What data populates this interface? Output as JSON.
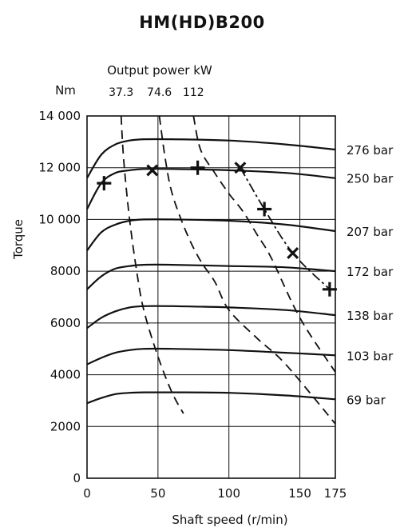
{
  "chart_data": {
    "type": "line",
    "title": "HM(HD)B200",
    "xlabel": "Shaft speed (r/min)",
    "ylabel": "Torque",
    "y_unit_label": "Nm",
    "top_axis_label": "Output power kW",
    "xlim": [
      0,
      175
    ],
    "ylim": [
      0,
      14000
    ],
    "grid": true,
    "x_ticks": [
      0,
      50,
      100,
      150,
      175
    ],
    "y_ticks": [
      0,
      2000,
      4000,
      6000,
      8000,
      10000,
      12000,
      14000
    ],
    "y_tick_labels": [
      "0",
      "2000",
      "4000",
      "6000",
      "8000",
      "10 000",
      "12 000",
      "14 000"
    ],
    "series": [
      {
        "name": "276 bar",
        "x": [
          0,
          10,
          20,
          30,
          40,
          60,
          100,
          140,
          175
        ],
        "y": [
          11600,
          12500,
          12900,
          13050,
          13100,
          13100,
          13050,
          12900,
          12700
        ]
      },
      {
        "name": "250 bar",
        "x": [
          0,
          10,
          20,
          30,
          40,
          60,
          100,
          140,
          175
        ],
        "y": [
          10400,
          11400,
          11800,
          11900,
          11950,
          11950,
          11900,
          11800,
          11600
        ]
      },
      {
        "name": "207 bar",
        "x": [
          0,
          10,
          20,
          30,
          40,
          60,
          100,
          140,
          175
        ],
        "y": [
          8800,
          9500,
          9800,
          9950,
          10000,
          10000,
          9950,
          9800,
          9550
        ]
      },
      {
        "name": "172 bar",
        "x": [
          0,
          10,
          20,
          30,
          40,
          60,
          100,
          140,
          175
        ],
        "y": [
          7300,
          7800,
          8100,
          8200,
          8250,
          8250,
          8200,
          8150,
          8000
        ]
      },
      {
        "name": "138 bar",
        "x": [
          0,
          10,
          20,
          30,
          40,
          60,
          100,
          140,
          175
        ],
        "y": [
          5800,
          6200,
          6450,
          6600,
          6650,
          6650,
          6600,
          6500,
          6300
        ]
      },
      {
        "name": "103 bar",
        "x": [
          0,
          10,
          20,
          30,
          40,
          60,
          100,
          140,
          175
        ],
        "y": [
          4400,
          4650,
          4850,
          4950,
          5000,
          5000,
          4950,
          4850,
          4750
        ]
      },
      {
        "name": "69 bar",
        "x": [
          0,
          10,
          20,
          30,
          40,
          60,
          100,
          140,
          175
        ],
        "y": [
          2900,
          3100,
          3250,
          3300,
          3320,
          3320,
          3300,
          3200,
          3050
        ]
      }
    ],
    "power_lines": [
      {
        "label": "37.3",
        "x": [
          24,
          26,
          30,
          35,
          40,
          50,
          60,
          68
        ],
        "y": [
          14000,
          12200,
          10000,
          8000,
          6500,
          4700,
          3300,
          2500
        ]
      },
      {
        "label": "74.6",
        "x": [
          51,
          55,
          60,
          70,
          80,
          90,
          100,
          120,
          140,
          175
        ],
        "y": [
          14000,
          12400,
          11000,
          9500,
          8400,
          7600,
          6500,
          5400,
          4400,
          2100
        ]
      },
      {
        "label": "112",
        "x": [
          75,
          80,
          90,
          100,
          110,
          120,
          130,
          150,
          175
        ],
        "y": [
          14000,
          12700,
          11800,
          11000,
          10300,
          9400,
          8500,
          6200,
          4100
        ]
      }
    ],
    "limit_line": {
      "x": [
        108,
        125,
        145,
        171
      ],
      "y": [
        12000,
        10400,
        8700,
        7300
      ]
    },
    "markers": [
      {
        "x": 12,
        "y": 11400
      },
      {
        "x": 46,
        "y": 11900
      },
      {
        "x": 78,
        "y": 12000
      },
      {
        "x": 108,
        "y": 12000
      },
      {
        "x": 125,
        "y": 10400
      },
      {
        "x": 145,
        "y": 8700
      },
      {
        "x": 171,
        "y": 7300
      }
    ]
  }
}
